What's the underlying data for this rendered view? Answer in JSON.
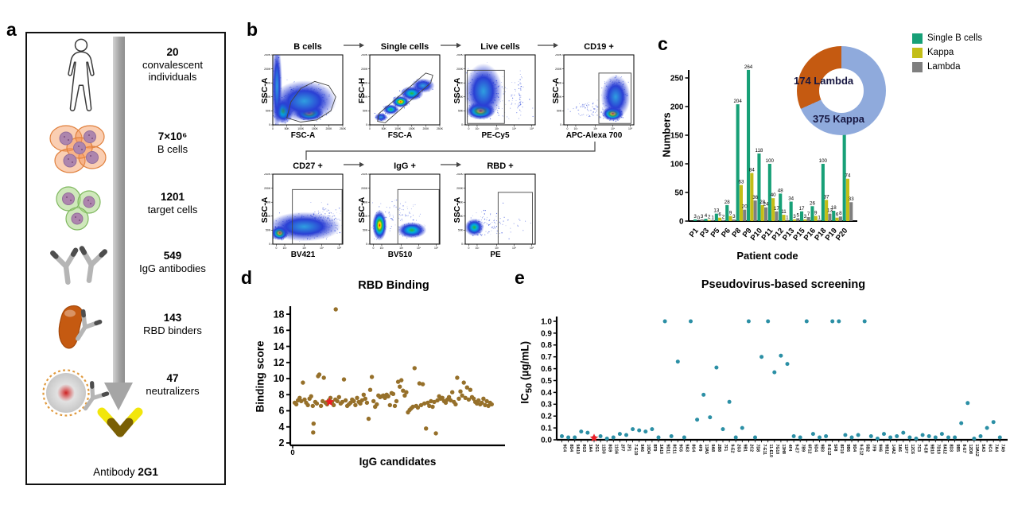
{
  "panel_a": {
    "letter": "a",
    "steps": [
      {
        "value": "20",
        "label": "convalescent individuals",
        "icon": "human-icon"
      },
      {
        "value": "7×10⁶",
        "label": "B cells",
        "icon": "b-cells-icon"
      },
      {
        "value": "1201",
        "label": "target cells",
        "icon": "target-cells-icon"
      },
      {
        "value": "549",
        "label": "IgG antibodies",
        "icon": "antibodies-icon"
      },
      {
        "value": "143",
        "label": "RBD binders",
        "icon": "rbd-binder-icon"
      },
      {
        "value": "47",
        "label": "neutralizers",
        "icon": "virus-neutralizer-icon"
      }
    ],
    "caption_prefix": "Antibody ",
    "caption_bold": "2G1"
  },
  "panel_b": {
    "letter": "b",
    "plots": [
      {
        "title": "B cells",
        "x": "FSC-A",
        "y": "SSC-A",
        "xscale": "lin"
      },
      {
        "title": "Single cells",
        "x": "FSC-A",
        "y": "FSC-H",
        "xscale": "lin"
      },
      {
        "title": "Live cells",
        "x": "PE-Cy5",
        "y": "SSC-A",
        "xscale": "log"
      },
      {
        "title": "CD19 +",
        "x": "APC-Alexa 700",
        "y": "SSC-A",
        "xscale": "log"
      },
      {
        "title": "CD27 +",
        "x": "BV421",
        "y": "SSC-A",
        "xscale": "log"
      },
      {
        "title": "IgG +",
        "x": "BV510",
        "y": "SSC-A",
        "xscale": "log"
      },
      {
        "title": "RBD +",
        "x": "PE",
        "y": "SSC-A",
        "xscale": "log"
      }
    ],
    "lin_ticks": [
      "0",
      "50K",
      "100K",
      "150K",
      "200K",
      "250K"
    ],
    "log_ticks": [
      "0",
      "10²",
      "10³",
      "10⁴",
      "10⁵"
    ]
  },
  "panel_c": {
    "letter": "c"
  },
  "panel_d": {
    "letter": "d"
  },
  "panel_e": {
    "letter": "e",
    "ylabel_prefix": "IC",
    "ylabel_sub": "50",
    "ylabel_suffix": " (µg/mL)"
  },
  "chart_data": [
    {
      "type": "bar",
      "title": "",
      "xlabel": "Patient code",
      "ylabel": "Numbers",
      "categories": [
        "P1",
        "P3",
        "P5",
        "P6",
        "P8",
        "P9",
        "P10",
        "P11",
        "P12",
        "P13",
        "P15",
        "P16",
        "P18",
        "P19",
        "P20"
      ],
      "yticks": [
        0,
        50,
        100,
        150,
        200,
        250
      ],
      "ylim": [
        0,
        280
      ],
      "legend_position": "top-right",
      "series": [
        {
          "name": "Single B cells",
          "color": "#17A077",
          "values": [
            3,
            4,
            13,
            28,
            204,
            264,
            118,
            100,
            48,
            34,
            17,
            26,
            100,
            18,
            223
          ]
        },
        {
          "name": "Kappa",
          "color": "#C3BE17",
          "values": [
            0,
            2,
            6,
            9,
            63,
            84,
            28,
            40,
            11,
            3,
            3,
            9,
            37,
            6,
            74
          ]
        },
        {
          "name": "Lambda",
          "color": "#7F7F7F",
          "values": [
            3,
            1,
            2,
            3,
            20,
            36,
            24,
            17,
            1,
            5,
            7,
            1,
            13,
            8,
            33
          ]
        }
      ]
    },
    {
      "type": "pie",
      "subtype": "donut",
      "slices": [
        {
          "label": "375 Kappa",
          "value": 375,
          "color": "#8FAADC"
        },
        {
          "label": "174 Lambda",
          "value": 174,
          "color": "#C55A11"
        }
      ]
    },
    {
      "type": "scatter",
      "title": "RBD Binding",
      "xlabel": "IgG candidates",
      "ylabel": "Binding score",
      "x_origin_label": "0",
      "yticks": [
        2,
        4,
        6,
        8,
        10,
        12,
        14,
        16,
        18
      ],
      "ylim": [
        2,
        19
      ],
      "color": "#96702A",
      "highlight": {
        "x": 18,
        "y": 7.1,
        "marker": "star",
        "color": "#EE1C24"
      },
      "points": [
        [
          1,
          7.0
        ],
        [
          1.8,
          6.8
        ],
        [
          2.6,
          7.3
        ],
        [
          3.4,
          7.6
        ],
        [
          4.2,
          7.2
        ],
        [
          5,
          9.5
        ],
        [
          5.8,
          7.4
        ],
        [
          6.6,
          7.0
        ],
        [
          7.4,
          6.7
        ],
        [
          8.2,
          7.5
        ],
        [
          9,
          7.8
        ],
        [
          9.8,
          6.6
        ],
        [
          10,
          3.3
        ],
        [
          10.2,
          4.4
        ],
        [
          11,
          7.1
        ],
        [
          11.8,
          6.9
        ],
        [
          12.4,
          10.3
        ],
        [
          13,
          10.5
        ],
        [
          13.8,
          6.6
        ],
        [
          14.6,
          7.2
        ],
        [
          15.2,
          10.1
        ],
        [
          16,
          7.0
        ],
        [
          16.8,
          6.8
        ],
        [
          17.6,
          7.3
        ],
        [
          18.4,
          7.6
        ],
        [
          19.2,
          7.1
        ],
        [
          20,
          6.7
        ],
        [
          20.8,
          7.4
        ],
        [
          21,
          18.6
        ],
        [
          21.8,
          7.2
        ],
        [
          22.6,
          7.7
        ],
        [
          23.4,
          6.9
        ],
        [
          24.2,
          7.1
        ],
        [
          25,
          9.9
        ],
        [
          25.8,
          7.3
        ],
        [
          26.6,
          6.6
        ],
        [
          27.4,
          6.8
        ],
        [
          28.2,
          7.0
        ],
        [
          29,
          7.4
        ],
        [
          29.8,
          7.2
        ],
        [
          30.6,
          6.7
        ],
        [
          31.4,
          7.6
        ],
        [
          32.2,
          7.1
        ],
        [
          33,
          6.9
        ],
        [
          33.8,
          7.3
        ],
        [
          34.6,
          8.0
        ],
        [
          35.4,
          7.5
        ],
        [
          36.2,
          7.0
        ],
        [
          37,
          5.0
        ],
        [
          37.8,
          8.6
        ],
        [
          38.6,
          10.2
        ],
        [
          39.4,
          7.2
        ],
        [
          40.2,
          6.5
        ],
        [
          41,
          6.8
        ],
        [
          41.8,
          7.9
        ],
        [
          42.6,
          7.7
        ],
        [
          43.4,
          7.8
        ],
        [
          44.2,
          7.9
        ],
        [
          45,
          7.6
        ],
        [
          45.8,
          8.0
        ],
        [
          46.6,
          7.8
        ],
        [
          47.4,
          6.7
        ],
        [
          48.2,
          8.2
        ],
        [
          49,
          8.1
        ],
        [
          49.8,
          6.6
        ],
        [
          50.6,
          7.2
        ],
        [
          51.4,
          9.6
        ],
        [
          52.2,
          9.0
        ],
        [
          53,
          9.8
        ],
        [
          53.8,
          8.5
        ],
        [
          54.6,
          7.9
        ],
        [
          55.4,
          8.3
        ],
        [
          56.2,
          5.8
        ],
        [
          57,
          6.1
        ],
        [
          57.8,
          6.3
        ],
        [
          58.6,
          6.5
        ],
        [
          59.4,
          11.3
        ],
        [
          60.2,
          6.6
        ],
        [
          61,
          6.4
        ],
        [
          61.8,
          9.4
        ],
        [
          62.6,
          6.7
        ],
        [
          63.4,
          9.3
        ],
        [
          64.2,
          6.9
        ],
        [
          65,
          3.8
        ],
        [
          65.8,
          7.0
        ],
        [
          66.6,
          6.6
        ],
        [
          67.4,
          7.2
        ],
        [
          68.2,
          6.5
        ],
        [
          69,
          7.1
        ],
        [
          69.8,
          3.2
        ],
        [
          70.6,
          7.3
        ],
        [
          71.4,
          7.8
        ],
        [
          72.2,
          7.5
        ],
        [
          73,
          7.6
        ],
        [
          73.8,
          7.2
        ],
        [
          74.6,
          7.0
        ],
        [
          75.4,
          7.4
        ],
        [
          76.2,
          7.7
        ],
        [
          77,
          7.3
        ],
        [
          77.8,
          8.3
        ],
        [
          78.6,
          7.1
        ],
        [
          79.4,
          6.8
        ],
        [
          80.2,
          10.1
        ],
        [
          81,
          7.5
        ],
        [
          81.8,
          8.4
        ],
        [
          82.6,
          7.9
        ],
        [
          83.4,
          9.5
        ],
        [
          84.2,
          7.6
        ],
        [
          85,
          8.9
        ],
        [
          85.8,
          7.4
        ],
        [
          86.6,
          8.6
        ],
        [
          87.4,
          7.7
        ],
        [
          88.2,
          7.5
        ],
        [
          89,
          7.1
        ],
        [
          89.8,
          6.9
        ],
        [
          90.6,
          7.3
        ],
        [
          91.4,
          6.8
        ],
        [
          92.2,
          7.0
        ],
        [
          93,
          7.5
        ],
        [
          93.8,
          6.7
        ],
        [
          94.6,
          7.2
        ],
        [
          95.4,
          6.6
        ],
        [
          96.2,
          7.0
        ],
        [
          97,
          6.8
        ]
      ]
    },
    {
      "type": "scatter",
      "title": "Pseudovirus-based screening",
      "ylabel": "IC50 (µg/mL)",
      "ylim": [
        0,
        1
      ],
      "ytick_step": 0.1,
      "color": "#2B8FA5",
      "categories": [
        "9C4",
        "8D4",
        "9A10",
        "8G3",
        "3A4",
        "2G1",
        "11D3",
        "8G9",
        "11G6",
        "2F7",
        "2F1",
        "7-E10",
        "9A6",
        "10D4",
        "8F9",
        "3A10",
        "9D11",
        "8C11",
        "9C6",
        "9A3",
        "8G4",
        "4F9",
        "13A5",
        "9A8",
        "2B8",
        "7F1",
        "9-E2",
        "2G3",
        "9B1",
        "2C2",
        "7D8",
        "7-E11",
        "11-E10",
        "7G10",
        "13H8",
        "4F4",
        "9-E7",
        "7B9",
        "6F12",
        "5D4",
        "9B3",
        "8-E12",
        "5F8",
        "8F10",
        "9B6",
        "9D4",
        "9-E12",
        "5B2",
        "7F9",
        "9H6",
        "9B12",
        "14A2",
        "3A6",
        "11F7",
        "12C6",
        "7C3",
        "9-E8",
        "9B10",
        "7D10",
        "8A12",
        "8D3",
        "9B5",
        "8-E7",
        "12D8",
        "13A12",
        "5A3",
        "6C4",
        "7A4",
        "7A9"
      ],
      "values": [
        0.03,
        0.02,
        0.02,
        0.07,
        0.06,
        0.02,
        0.03,
        0.01,
        0.02,
        0.05,
        0.04,
        0.09,
        0.08,
        0.07,
        0.09,
        0.02,
        1.0,
        0.03,
        0.66,
        0.02,
        1.0,
        0.17,
        0.38,
        0.19,
        0.61,
        0.09,
        0.32,
        0.02,
        0.1,
        1.0,
        0.02,
        0.7,
        1.0,
        0.57,
        0.71,
        0.64,
        0.03,
        0.02,
        1.0,
        0.05,
        0.02,
        0.03,
        1.0,
        1.0,
        0.04,
        0.02,
        0.04,
        1.0,
        0.03,
        0.01,
        0.05,
        0.02,
        0.03,
        0.06,
        0.02,
        0.01,
        0.04,
        0.03,
        0.02,
        0.05,
        0.02,
        0.02,
        0.14,
        0.31,
        0.01,
        0.03,
        0.1,
        0.15,
        0.02
      ],
      "highlight": {
        "category": "2G1",
        "index": 5,
        "value": 0.015,
        "marker": "star",
        "color": "#EE1C24"
      }
    }
  ]
}
